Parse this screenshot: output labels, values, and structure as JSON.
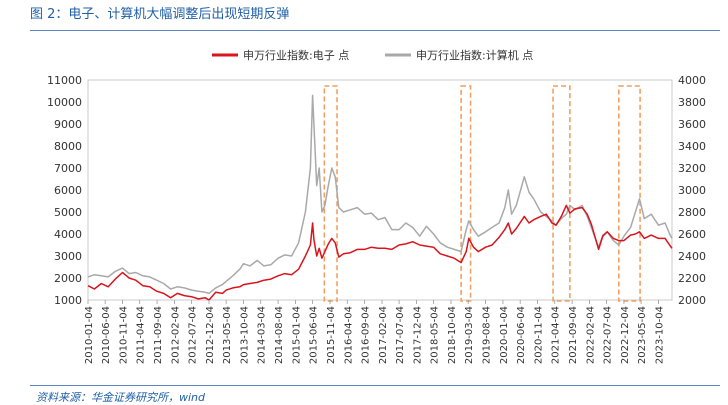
{
  "figure": {
    "title": "图 2：电子、计算机大幅调整后出现短期反弹",
    "source": "资料来源：华金证券研究所，wind"
  },
  "colors": {
    "electronics": "#d9141c",
    "computer": "#a9a9a9",
    "highlight_box": "#f0a060",
    "title_blue": "#1f5fa8"
  },
  "chart_data": {
    "type": "line",
    "title": "",
    "legend": {
      "placement": "top",
      "entries": [
        "申万行业指数:电子 点",
        "申万行业指数:计算机 点"
      ]
    },
    "y_left": {
      "range": [
        1000,
        11000
      ],
      "ticks": [
        1000,
        2000,
        3000,
        4000,
        5000,
        6000,
        7000,
        8000,
        9000,
        10000,
        11000
      ]
    },
    "y_right": {
      "range": [
        2000,
        4000
      ],
      "ticks": [
        2000,
        2200,
        2400,
        2600,
        2800,
        3000,
        3200,
        3400,
        3600,
        3800,
        4000
      ]
    },
    "x_range": [
      "2010-01-04",
      "2024-01-31"
    ],
    "x_ticks": [
      "2010-01-04",
      "2010-06-04",
      "2010-11-04",
      "2011-04-04",
      "2011-09-04",
      "2012-02-04",
      "2012-07-04",
      "2012-12-04",
      "2013-05-04",
      "2013-10-04",
      "2014-03-04",
      "2014-08-04",
      "2015-01-04",
      "2015-06-04",
      "2015-11-04",
      "2016-04-04",
      "2016-09-04",
      "2017-02-04",
      "2017-07-04",
      "2017-12-04",
      "2018-05-04",
      "2018-10-04",
      "2019-03-04",
      "2019-08-04",
      "2020-01-04",
      "2020-06-04",
      "2020-11-04",
      "2021-04-04",
      "2021-09-04",
      "2022-02-04",
      "2022-07-04",
      "2022-12-04",
      "2023-05-04",
      "2023-10-04"
    ],
    "highlights": [
      {
        "start": "2015-09-15",
        "end": "2016-01-05"
      },
      {
        "start": "2019-01-01",
        "end": "2019-03-25"
      },
      {
        "start": "2021-03-20",
        "end": "2021-08-15"
      },
      {
        "start": "2022-10-20",
        "end": "2023-04-25"
      }
    ],
    "series": [
      {
        "name": "申万行业指数:电子 点",
        "axis": "right",
        "points": [
          [
            "2010-01-04",
            2130
          ],
          [
            "2010-03-01",
            2100
          ],
          [
            "2010-05-01",
            2150
          ],
          [
            "2010-07-01",
            2120
          ],
          [
            "2010-09-01",
            2190
          ],
          [
            "2010-11-04",
            2250
          ],
          [
            "2011-01-01",
            2200
          ],
          [
            "2011-03-01",
            2180
          ],
          [
            "2011-05-01",
            2130
          ],
          [
            "2011-07-01",
            2120
          ],
          [
            "2011-09-01",
            2080
          ],
          [
            "2011-11-01",
            2060
          ],
          [
            "2012-01-01",
            2020
          ],
          [
            "2012-03-01",
            2060
          ],
          [
            "2012-05-01",
            2040
          ],
          [
            "2012-07-04",
            2030
          ],
          [
            "2012-09-01",
            2010
          ],
          [
            "2012-11-01",
            2020
          ],
          [
            "2012-12-04",
            2000
          ],
          [
            "2013-02-01",
            2070
          ],
          [
            "2013-04-01",
            2060
          ],
          [
            "2013-05-04",
            2090
          ],
          [
            "2013-07-01",
            2110
          ],
          [
            "2013-09-01",
            2120
          ],
          [
            "2013-10-04",
            2140
          ],
          [
            "2013-12-01",
            2150
          ],
          [
            "2014-02-01",
            2160
          ],
          [
            "2014-04-01",
            2180
          ],
          [
            "2014-06-01",
            2190
          ],
          [
            "2014-08-04",
            2220
          ],
          [
            "2014-10-01",
            2240
          ],
          [
            "2014-12-01",
            2230
          ],
          [
            "2015-02-01",
            2280
          ],
          [
            "2015-04-01",
            2400
          ],
          [
            "2015-05-15",
            2500
          ],
          [
            "2015-06-04",
            2700
          ],
          [
            "2015-06-15",
            2550
          ],
          [
            "2015-07-10",
            2400
          ],
          [
            "2015-08-01",
            2470
          ],
          [
            "2015-08-25",
            2380
          ],
          [
            "2015-09-20",
            2440
          ],
          [
            "2015-10-20",
            2510
          ],
          [
            "2015-11-20",
            2560
          ],
          [
            "2015-12-20",
            2520
          ],
          [
            "2016-01-20",
            2390
          ],
          [
            "2016-03-01",
            2420
          ],
          [
            "2016-05-01",
            2430
          ],
          [
            "2016-07-01",
            2460
          ],
          [
            "2016-09-04",
            2460
          ],
          [
            "2016-11-01",
            2480
          ],
          [
            "2017-01-01",
            2470
          ],
          [
            "2017-03-01",
            2470
          ],
          [
            "2017-05-01",
            2460
          ],
          [
            "2017-07-04",
            2500
          ],
          [
            "2017-09-01",
            2510
          ],
          [
            "2017-11-01",
            2530
          ],
          [
            "2018-01-01",
            2500
          ],
          [
            "2018-03-01",
            2490
          ],
          [
            "2018-05-04",
            2480
          ],
          [
            "2018-07-01",
            2420
          ],
          [
            "2018-09-01",
            2400
          ],
          [
            "2018-11-01",
            2380
          ],
          [
            "2019-01-01",
            2340
          ],
          [
            "2019-02-15",
            2440
          ],
          [
            "2019-03-10",
            2560
          ],
          [
            "2019-04-20",
            2480
          ],
          [
            "2019-06-01",
            2440
          ],
          [
            "2019-08-04",
            2480
          ],
          [
            "2019-10-01",
            2500
          ],
          [
            "2019-12-01",
            2570
          ],
          [
            "2020-01-20",
            2640
          ],
          [
            "2020-02-20",
            2700
          ],
          [
            "2020-03-20",
            2600
          ],
          [
            "2020-05-01",
            2650
          ],
          [
            "2020-07-10",
            2760
          ],
          [
            "2020-08-20",
            2700
          ],
          [
            "2020-10-01",
            2730
          ],
          [
            "2020-12-01",
            2760
          ],
          [
            "2021-01-20",
            2780
          ],
          [
            "2021-03-10",
            2700
          ],
          [
            "2021-04-15",
            2680
          ],
          [
            "2021-06-01",
            2760
          ],
          [
            "2021-07-15",
            2860
          ],
          [
            "2021-08-15",
            2790
          ],
          [
            "2021-10-01",
            2830
          ],
          [
            "2021-12-01",
            2840
          ],
          [
            "2022-01-15",
            2780
          ],
          [
            "2022-02-20",
            2690
          ],
          [
            "2022-04-25",
            2460
          ],
          [
            "2022-06-01",
            2580
          ],
          [
            "2022-07-10",
            2620
          ],
          [
            "2022-09-01",
            2560
          ],
          [
            "2022-10-20",
            2540
          ],
          [
            "2022-12-04",
            2540
          ],
          [
            "2023-02-01",
            2590
          ],
          [
            "2023-03-15",
            2600
          ],
          [
            "2023-04-20",
            2620
          ],
          [
            "2023-06-01",
            2560
          ],
          [
            "2023-08-01",
            2590
          ],
          [
            "2023-10-04",
            2560
          ],
          [
            "2023-12-01",
            2560
          ],
          [
            "2024-01-10",
            2500
          ],
          [
            "2024-01-31",
            2470
          ]
        ]
      },
      {
        "name": "申万行业指数:计算机 点",
        "axis": "left",
        "points": [
          [
            "2010-01-04",
            2050
          ],
          [
            "2010-03-01",
            2150
          ],
          [
            "2010-05-01",
            2100
          ],
          [
            "2010-07-01",
            2050
          ],
          [
            "2010-09-01",
            2300
          ],
          [
            "2010-11-04",
            2450
          ],
          [
            "2011-01-01",
            2200
          ],
          [
            "2011-03-01",
            2250
          ],
          [
            "2011-05-01",
            2100
          ],
          [
            "2011-07-01",
            2050
          ],
          [
            "2011-09-01",
            1900
          ],
          [
            "2011-11-01",
            1750
          ],
          [
            "2012-01-01",
            1500
          ],
          [
            "2012-03-01",
            1600
          ],
          [
            "2012-05-01",
            1550
          ],
          [
            "2012-07-04",
            1450
          ],
          [
            "2012-09-01",
            1400
          ],
          [
            "2012-11-01",
            1350
          ],
          [
            "2012-12-04",
            1300
          ],
          [
            "2013-02-01",
            1550
          ],
          [
            "2013-04-01",
            1700
          ],
          [
            "2013-05-04",
            1850
          ],
          [
            "2013-07-01",
            2100
          ],
          [
            "2013-09-01",
            2400
          ],
          [
            "2013-10-04",
            2650
          ],
          [
            "2013-12-01",
            2550
          ],
          [
            "2014-02-01",
            2800
          ],
          [
            "2014-04-01",
            2550
          ],
          [
            "2014-06-01",
            2600
          ],
          [
            "2014-08-04",
            2900
          ],
          [
            "2014-10-01",
            3050
          ],
          [
            "2014-12-01",
            3000
          ],
          [
            "2015-02-01",
            3600
          ],
          [
            "2015-04-01",
            5000
          ],
          [
            "2015-05-15",
            7000
          ],
          [
            "2015-06-04",
            10300
          ],
          [
            "2015-06-15",
            9000
          ],
          [
            "2015-07-10",
            6200
          ],
          [
            "2015-08-01",
            7000
          ],
          [
            "2015-08-25",
            5000
          ],
          [
            "2015-09-20",
            5300
          ],
          [
            "2015-10-20",
            6200
          ],
          [
            "2015-11-20",
            7000
          ],
          [
            "2015-12-20",
            6600
          ],
          [
            "2016-01-20",
            5200
          ],
          [
            "2016-03-01",
            5000
          ],
          [
            "2016-05-01",
            5100
          ],
          [
            "2016-07-01",
            5200
          ],
          [
            "2016-09-04",
            4900
          ],
          [
            "2016-11-01",
            4950
          ],
          [
            "2017-01-01",
            4650
          ],
          [
            "2017-03-01",
            4750
          ],
          [
            "2017-05-01",
            4200
          ],
          [
            "2017-07-04",
            4200
          ],
          [
            "2017-09-01",
            4500
          ],
          [
            "2017-11-01",
            4300
          ],
          [
            "2018-01-01",
            3900
          ],
          [
            "2018-03-01",
            4350
          ],
          [
            "2018-05-04",
            4000
          ],
          [
            "2018-07-01",
            3600
          ],
          [
            "2018-09-01",
            3400
          ],
          [
            "2018-11-01",
            3300
          ],
          [
            "2019-01-01",
            3200
          ],
          [
            "2019-02-15",
            4200
          ],
          [
            "2019-03-10",
            4600
          ],
          [
            "2019-04-20",
            4200
          ],
          [
            "2019-06-01",
            3900
          ],
          [
            "2019-08-04",
            4100
          ],
          [
            "2019-10-01",
            4300
          ],
          [
            "2019-12-01",
            4500
          ],
          [
            "2020-01-20",
            5200
          ],
          [
            "2020-02-20",
            6000
          ],
          [
            "2020-03-20",
            4900
          ],
          [
            "2020-05-01",
            5300
          ],
          [
            "2020-07-10",
            6600
          ],
          [
            "2020-08-20",
            5900
          ],
          [
            "2020-10-01",
            5600
          ],
          [
            "2020-12-01",
            5000
          ],
          [
            "2021-01-20",
            4800
          ],
          [
            "2021-03-10",
            4600
          ],
          [
            "2021-04-15",
            4400
          ],
          [
            "2021-06-01",
            4700
          ],
          [
            "2021-07-15",
            4900
          ],
          [
            "2021-08-15",
            5300
          ],
          [
            "2021-10-01",
            5100
          ],
          [
            "2021-12-01",
            5300
          ],
          [
            "2022-01-15",
            4800
          ],
          [
            "2022-02-20",
            4300
          ],
          [
            "2022-04-25",
            3400
          ],
          [
            "2022-06-01",
            3950
          ],
          [
            "2022-07-10",
            4100
          ],
          [
            "2022-09-01",
            3700
          ],
          [
            "2022-10-20",
            3500
          ],
          [
            "2022-12-04",
            3900
          ],
          [
            "2023-02-01",
            4300
          ],
          [
            "2023-03-15",
            5000
          ],
          [
            "2023-04-20",
            5600
          ],
          [
            "2023-06-01",
            4700
          ],
          [
            "2023-08-01",
            4900
          ],
          [
            "2023-10-04",
            4400
          ],
          [
            "2023-12-01",
            4500
          ],
          [
            "2024-01-10",
            4000
          ],
          [
            "2024-01-31",
            3800
          ]
        ]
      }
    ]
  }
}
